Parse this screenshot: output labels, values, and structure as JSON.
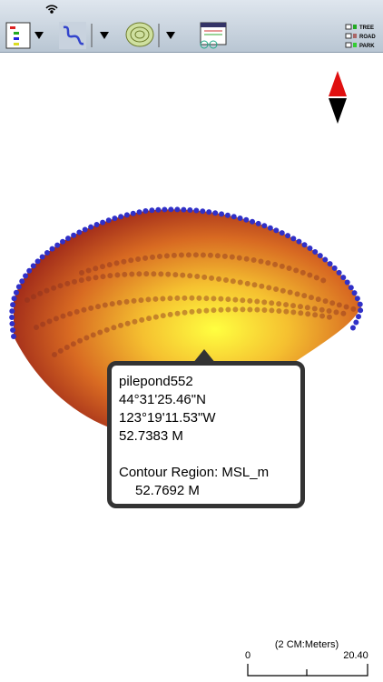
{
  "toolbar": {
    "legend": [
      "TREE",
      "ROAD",
      "PARK"
    ]
  },
  "popup": {
    "name": "pilepond552",
    "lat": "44°31'25.46\"N",
    "lon": "123°19'11.53\"W",
    "elevation": "52.7383 M",
    "region_label": "Contour Region: MSL_m",
    "region_value": "52.7692 M"
  },
  "scale": {
    "label": "(2 CM:Meters)",
    "start": "0",
    "end": "20.40"
  }
}
